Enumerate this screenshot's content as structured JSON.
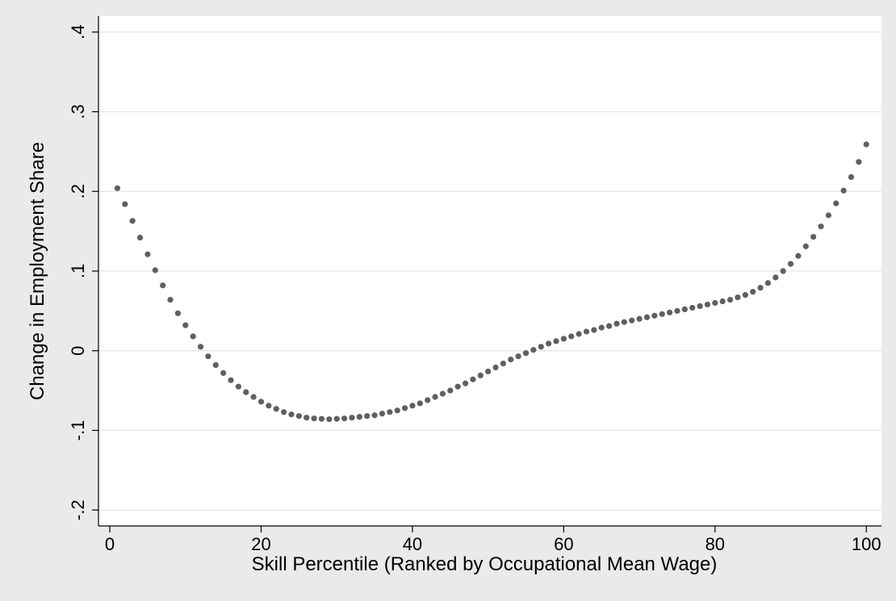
{
  "chart_data": {
    "type": "scatter",
    "title": "",
    "xlabel": "Skill Percentile (Ranked by Occupational Mean Wage)",
    "ylabel": "Change in Employment Share",
    "xlim": [
      -1.5,
      102
    ],
    "ylim": [
      -0.22,
      0.42
    ],
    "x_ticks": [
      0,
      20,
      40,
      60,
      80,
      100
    ],
    "x_tick_labels": [
      "0",
      "20",
      "40",
      "60",
      "80",
      "100"
    ],
    "y_ticks": [
      -0.2,
      -0.1,
      0,
      0.1,
      0.2,
      0.3,
      0.4
    ],
    "y_tick_labels": [
      "-.2",
      "-.1",
      "0",
      ".1",
      ".2",
      ".3",
      ".4"
    ],
    "grid": "horizontal",
    "legend": "none",
    "colors": {
      "page_background": "#eaeaea",
      "plot_background": "#ffffff",
      "gridline": "#e5e5e5",
      "marker": "#5f5f5f",
      "axis": "#000000"
    },
    "series": [
      {
        "points": [
          [
            1,
            0.204
          ],
          [
            2,
            0.184
          ],
          [
            3,
            0.163
          ],
          [
            4,
            0.142
          ],
          [
            5,
            0.121
          ],
          [
            6,
            0.101
          ],
          [
            7,
            0.082
          ],
          [
            8,
            0.064
          ],
          [
            9,
            0.047
          ],
          [
            10,
            0.032
          ],
          [
            11,
            0.018
          ],
          [
            12,
            0.005
          ],
          [
            13,
            -0.007
          ],
          [
            14,
            -0.018
          ],
          [
            15,
            -0.028
          ],
          [
            16,
            -0.037
          ],
          [
            17,
            -0.045
          ],
          [
            18,
            -0.052
          ],
          [
            19,
            -0.058
          ],
          [
            20,
            -0.064
          ],
          [
            21,
            -0.069
          ],
          [
            22,
            -0.073
          ],
          [
            23,
            -0.077
          ],
          [
            24,
            -0.08
          ],
          [
            25,
            -0.082
          ],
          [
            26,
            -0.084
          ],
          [
            27,
            -0.085
          ],
          [
            28,
            -0.0855
          ],
          [
            29,
            -0.086
          ],
          [
            30,
            -0.0855
          ],
          [
            31,
            -0.085
          ],
          [
            32,
            -0.084
          ],
          [
            33,
            -0.083
          ],
          [
            34,
            -0.082
          ],
          [
            35,
            -0.081
          ],
          [
            36,
            -0.079
          ],
          [
            37,
            -0.077
          ],
          [
            38,
            -0.075
          ],
          [
            39,
            -0.072
          ],
          [
            40,
            -0.069
          ],
          [
            41,
            -0.066
          ],
          [
            42,
            -0.062
          ],
          [
            43,
            -0.058
          ],
          [
            44,
            -0.054
          ],
          [
            45,
            -0.05
          ],
          [
            46,
            -0.045
          ],
          [
            47,
            -0.041
          ],
          [
            48,
            -0.036
          ],
          [
            49,
            -0.031
          ],
          [
            50,
            -0.026
          ],
          [
            51,
            -0.021
          ],
          [
            52,
            -0.016
          ],
          [
            53,
            -0.011
          ],
          [
            54,
            -0.007
          ],
          [
            55,
            -0.003
          ],
          [
            56,
            0.001
          ],
          [
            57,
            0.005
          ],
          [
            58,
            0.009
          ],
          [
            59,
            0.012
          ],
          [
            60,
            0.015
          ],
          [
            61,
            0.018
          ],
          [
            62,
            0.021
          ],
          [
            63,
            0.024
          ],
          [
            64,
            0.026
          ],
          [
            65,
            0.029
          ],
          [
            66,
            0.031
          ],
          [
            67,
            0.034
          ],
          [
            68,
            0.036
          ],
          [
            69,
            0.038
          ],
          [
            70,
            0.04
          ],
          [
            71,
            0.042
          ],
          [
            72,
            0.044
          ],
          [
            73,
            0.046
          ],
          [
            74,
            0.048
          ],
          [
            75,
            0.05
          ],
          [
            76,
            0.052
          ],
          [
            77,
            0.054
          ],
          [
            78,
            0.056
          ],
          [
            79,
            0.058
          ],
          [
            80,
            0.06
          ],
          [
            81,
            0.062
          ],
          [
            82,
            0.064
          ],
          [
            83,
            0.067
          ],
          [
            84,
            0.07
          ],
          [
            85,
            0.074
          ],
          [
            86,
            0.079
          ],
          [
            87,
            0.085
          ],
          [
            88,
            0.092
          ],
          [
            89,
            0.1
          ],
          [
            90,
            0.109
          ],
          [
            91,
            0.119
          ],
          [
            92,
            0.131
          ],
          [
            93,
            0.143
          ],
          [
            94,
            0.156
          ],
          [
            95,
            0.17
          ],
          [
            96,
            0.185
          ],
          [
            97,
            0.201
          ],
          [
            98,
            0.218
          ],
          [
            99,
            0.237
          ],
          [
            100,
            0.259
          ]
        ]
      }
    ]
  }
}
